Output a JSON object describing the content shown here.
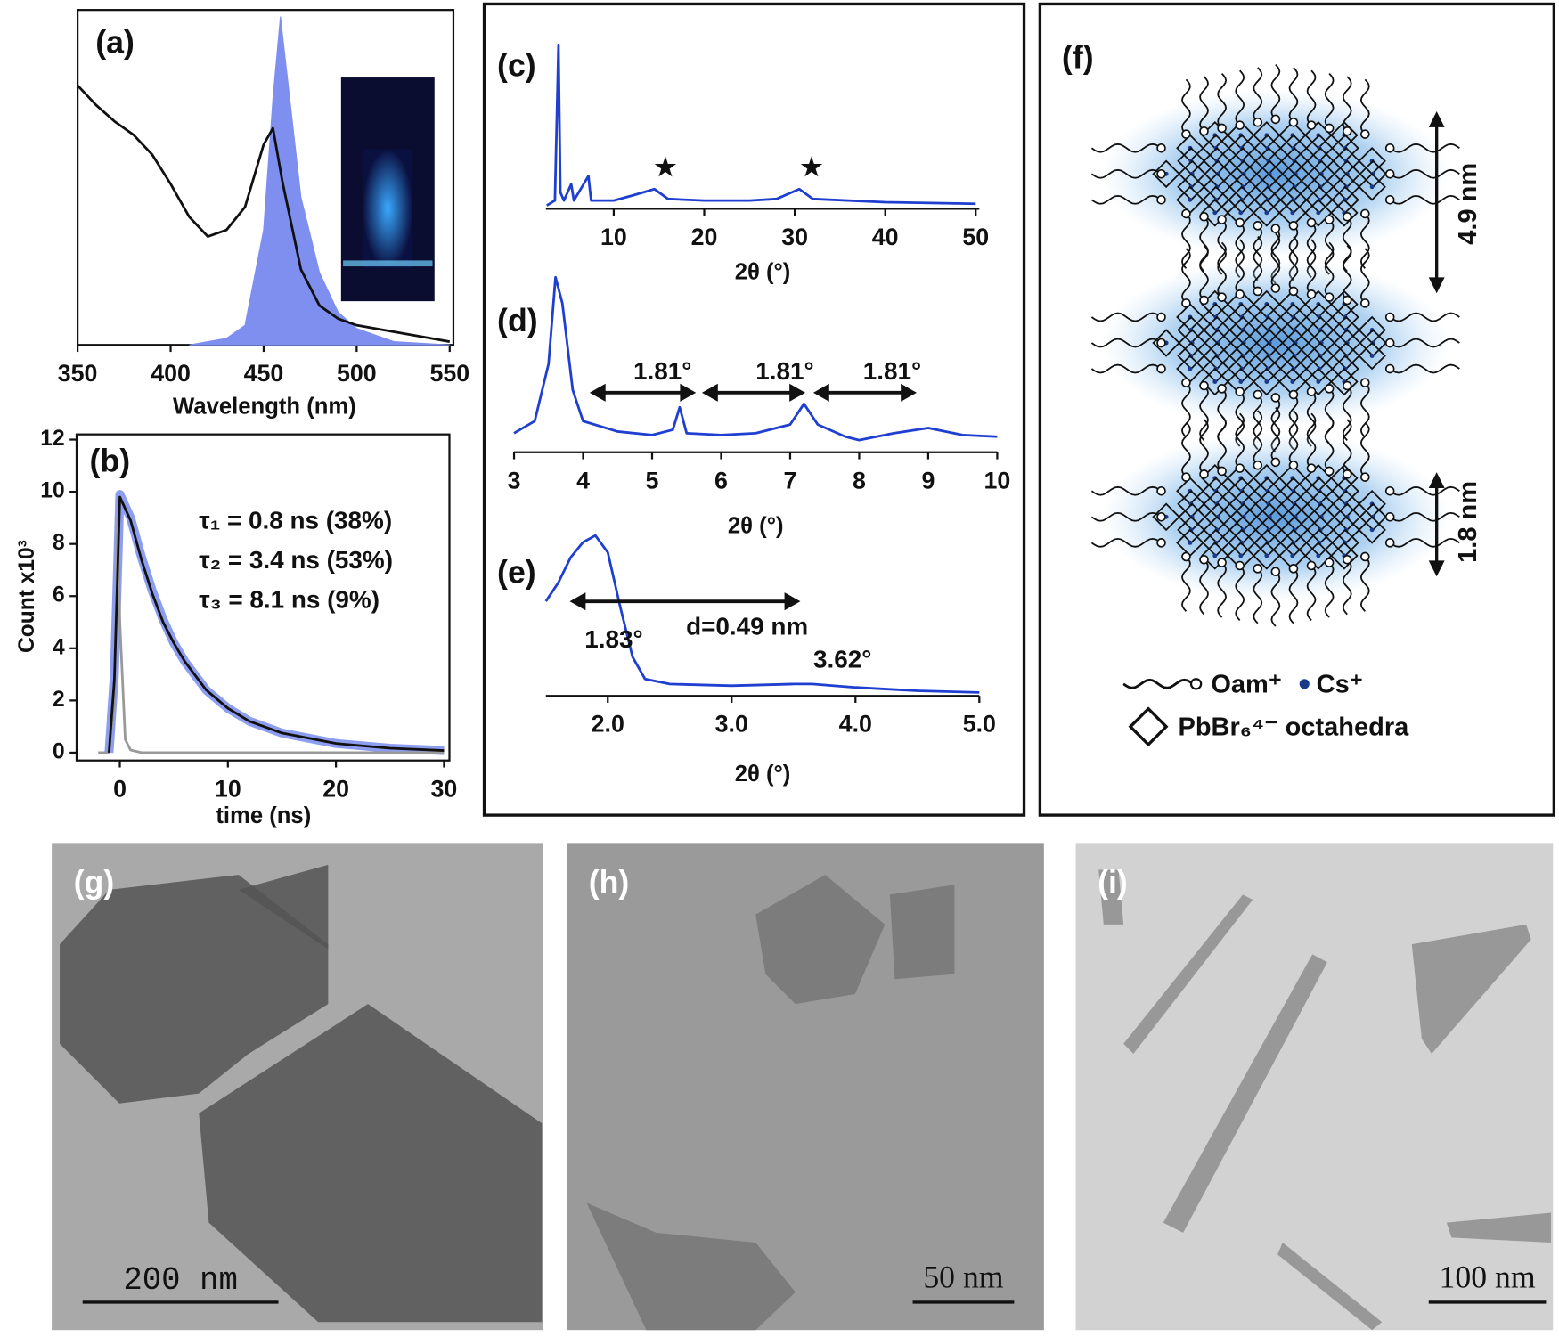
{
  "chart_data": [
    {
      "type": "line",
      "label": "(a)",
      "xlabel": "Wavelength (nm)",
      "xlim": [
        350,
        552
      ],
      "xticks": [
        350,
        400,
        450,
        500,
        550
      ],
      "ylim": [
        0,
        1.02
      ],
      "series": [
        {
          "color": "#7e8ff0",
          "fill": true,
          "x": [
            410,
            430,
            440,
            450,
            455,
            459,
            463,
            470,
            480,
            490,
            500,
            520,
            550
          ],
          "values": [
            0,
            0.02,
            0.06,
            0.35,
            0.75,
            1.0,
            0.8,
            0.45,
            0.22,
            0.1,
            0.05,
            0.01,
            0
          ]
        },
        {
          "color": "#111111",
          "x": [
            350,
            360,
            370,
            380,
            390,
            400,
            410,
            420,
            430,
            440,
            450,
            455,
            460,
            470,
            480,
            490,
            500,
            520,
            550
          ],
          "values": [
            0.79,
            0.73,
            0.68,
            0.64,
            0.58,
            0.49,
            0.39,
            0.33,
            0.35,
            0.42,
            0.61,
            0.66,
            0.5,
            0.23,
            0.12,
            0.08,
            0.06,
            0.04,
            0.01
          ]
        }
      ]
    },
    {
      "type": "line",
      "label": "(b)",
      "xlabel": "time (ns)",
      "ylabel": "Count x10³",
      "xlim": [
        -4,
        30.5
      ],
      "xticks": [
        0,
        10,
        20,
        30
      ],
      "ylim": [
        -0.3,
        12.2
      ],
      "yticks": [
        0,
        2,
        4,
        6,
        8,
        10,
        12
      ],
      "annotations": [
        "τ₁ = 0.8 ns (38%)",
        "τ₂ = 3.4 ns (53%)",
        "τ₃ = 8.1 ns (9%)"
      ],
      "series": [
        {
          "color": "#8d9df0",
          "width": 9,
          "x": [
            -1,
            -0.5,
            0,
            1,
            2,
            3,
            4,
            5,
            6,
            8,
            10,
            12,
            15,
            20,
            25,
            30
          ],
          "values": [
            0,
            3,
            9.9,
            9,
            7.5,
            6.2,
            5.1,
            4.2,
            3.5,
            2.4,
            1.7,
            1.2,
            0.75,
            0.35,
            0.17,
            0.08
          ]
        },
        {
          "color": "#999999",
          "x": [
            -2,
            -1,
            -0.5,
            -0.2,
            0,
            0.5,
            1,
            2,
            30
          ],
          "values": [
            0,
            0,
            2,
            9,
            5,
            0.5,
            0.1,
            0,
            0
          ]
        },
        {
          "color": "#111111",
          "x": [
            -1,
            -0.5,
            0,
            1,
            2,
            3,
            4,
            5,
            6,
            8,
            10,
            12,
            15,
            20,
            25,
            30
          ],
          "values": [
            0,
            2.8,
            9.8,
            8.9,
            7.4,
            6.1,
            5.0,
            4.2,
            3.5,
            2.4,
            1.7,
            1.2,
            0.75,
            0.35,
            0.17,
            0.08
          ]
        }
      ]
    },
    {
      "type": "line",
      "label": "(c)",
      "xlabel": "2θ (°)",
      "xlim": [
        2.5,
        50.4
      ],
      "xticks": [
        10,
        20,
        30,
        40,
        50
      ],
      "ylim": [
        0,
        1.03
      ],
      "annotations": [
        "★",
        "★"
      ],
      "series": [
        {
          "color": "#1f3fd0",
          "x": [
            2.6,
            3.5,
            3.9,
            4.1,
            4.5,
            5.3,
            5.6,
            7.2,
            7.5,
            10,
            12,
            14.5,
            16,
            20,
            25,
            28,
            30.5,
            32,
            40,
            50
          ],
          "values": [
            0.02,
            0.05,
            1.0,
            0.1,
            0.05,
            0.15,
            0.05,
            0.2,
            0.05,
            0.05,
            0.08,
            0.12,
            0.06,
            0.05,
            0.05,
            0.06,
            0.12,
            0.06,
            0.04,
            0.03
          ]
        }
      ]
    },
    {
      "type": "line",
      "label": "(d)",
      "xlabel": "2θ (°)",
      "xlim": [
        3,
        10
      ],
      "xticks": [
        3,
        4,
        5,
        6,
        7,
        8,
        9,
        10
      ],
      "ylim": [
        -0.06,
        1.03
      ],
      "annotations": [
        "1.81°",
        "1.81°",
        "1.81°"
      ],
      "series": [
        {
          "color": "#1f3fd0",
          "x": [
            3.0,
            3.3,
            3.5,
            3.6,
            3.7,
            3.85,
            4.0,
            4.5,
            5.0,
            5.3,
            5.4,
            5.5,
            6.0,
            6.5,
            7.0,
            7.2,
            7.4,
            7.8,
            8.0,
            8.5,
            9.0,
            9.5,
            10
          ],
          "values": [
            0.05,
            0.12,
            0.45,
            0.95,
            0.8,
            0.3,
            0.12,
            0.06,
            0.04,
            0.07,
            0.2,
            0.05,
            0.04,
            0.05,
            0.1,
            0.22,
            0.1,
            0.03,
            0.01,
            0.05,
            0.08,
            0.04,
            0.03
          ]
        }
      ]
    },
    {
      "type": "line",
      "label": "(e)",
      "xlabel": "2θ (°)",
      "xlim": [
        1.5,
        5.0
      ],
      "xticks": [
        {
          "value": 2,
          "label": "2.0"
        },
        {
          "value": 3,
          "label": "3.0"
        },
        {
          "value": 4,
          "label": "4.0"
        },
        {
          "value": 5,
          "label": "5.0"
        }
      ],
      "ylim": [
        -0.01,
        1.05
      ],
      "annotations": [
        "1.83°",
        "d=0.49 nm",
        "3.62°"
      ],
      "series": [
        {
          "color": "#1f3fd0",
          "x": [
            1.5,
            1.6,
            1.7,
            1.8,
            1.9,
            2.0,
            2.1,
            2.2,
            2.3,
            2.5,
            3.0,
            3.5,
            3.65,
            4.0,
            4.5,
            5.0
          ],
          "values": [
            0.55,
            0.66,
            0.81,
            0.9,
            0.94,
            0.84,
            0.52,
            0.22,
            0.09,
            0.06,
            0.05,
            0.06,
            0.06,
            0.04,
            0.02,
            0.01
          ]
        }
      ]
    }
  ],
  "diagram": {
    "label": "(f)",
    "dimensions": [
      "4.9 nm",
      "1.8 nm"
    ],
    "legend": [
      "Oam⁺",
      "Cs⁺",
      "PbBr₆⁴⁻ octahedra"
    ]
  },
  "images": [
    {
      "label": "(g)",
      "scale_bar": "200 nm"
    },
    {
      "label": "(h)",
      "scale_bar": "50 nm"
    },
    {
      "label": "(i)",
      "scale_bar": "100 nm"
    }
  ]
}
